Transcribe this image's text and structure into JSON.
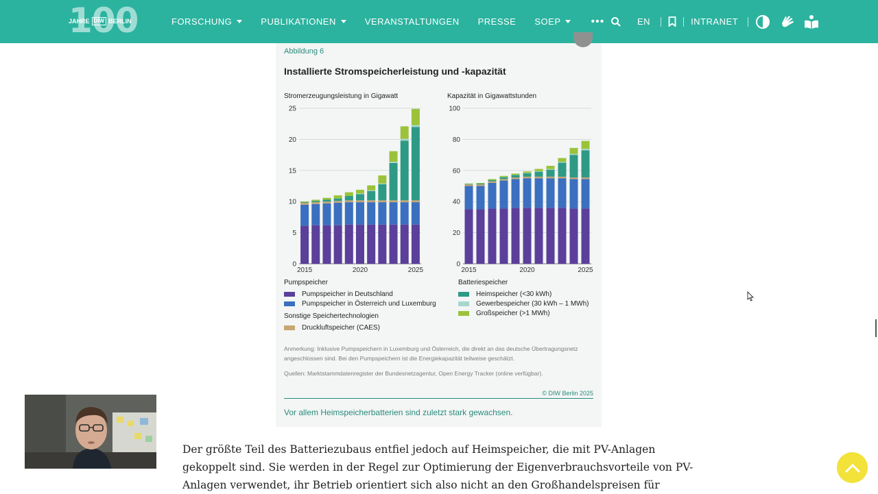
{
  "nav": {
    "logo_big": "100",
    "logo_left": "JAHRE",
    "logo_box": "DIW",
    "logo_right": "BERLIN",
    "items": [
      {
        "label": "FORSCHUNG",
        "dropdown": true
      },
      {
        "label": "PUBLIKATIONEN",
        "dropdown": true
      },
      {
        "label": "VERANSTALTUNGEN",
        "dropdown": false
      },
      {
        "label": "PRESSE",
        "dropdown": false
      },
      {
        "label": "SOEP",
        "dropdown": true
      }
    ],
    "more_label": "•••",
    "lang": "EN",
    "intranet": "INTRANET",
    "icons": [
      "search-icon",
      "bookmark-icon",
      "contrast-icon",
      "sign-language-icon",
      "easy-read-icon"
    ]
  },
  "figure": {
    "number": "Abbildung 6",
    "title": "Installierte Stromspeicherleistung und -kapazität",
    "left_chart_label": "Stromerzeugungsleistung in Gigawatt",
    "right_chart_label": "Kapazität in Gigawattstunden",
    "legend_pump_header": "Pumpspeicher",
    "legend_pump_de": "Pumpspeicher in Deutschland",
    "legend_pump_at": "Pumpspeicher in Österreich und Luxemburg",
    "legend_other_header": "Sonstige Speichertechnologien",
    "legend_caes": "Druckluftspeicher (CAES)",
    "legend_battery_header": "Batteriespeicher",
    "legend_home": "Heimspeicher (<30 kWh)",
    "legend_commercial": "Gewerbespeicher (30 kWh – 1 MWh)",
    "legend_large": "Großspeicher (>1 MWh)",
    "note_line1": "Anmerkung: Inklusive Pumpspeichern in Luxemburg und Österreich, die direkt an das deutsche Übertragungsnetz",
    "note_line2": "angeschlossen sind. Bei den Pumpspeichern ist die Energiekapazität teilweise geschätzt.",
    "sources": "Quellen: Marktstammdatenregister der Bundesnetzagentur, Open Energy Tracker (online verfügbar).",
    "copyright": "© DIW Berlin 2025",
    "caption": "Vor allem Heimspeicherbatterien sind zuletzt stark gewachsen.",
    "colors": {
      "pump_de": "#5b3f9a",
      "pump_at": "#3b6fbf",
      "caes": "#c8a672",
      "home": "#2e9a86",
      "commercial": "#a8d6cd",
      "large": "#9cc23b"
    }
  },
  "chart_data": [
    {
      "type": "bar",
      "stacked": true,
      "ylabel": "Stromerzeugungsleistung in Gigawatt",
      "ylim": [
        0,
        25
      ],
      "yticks": [
        0,
        5,
        10,
        15,
        20,
        25
      ],
      "categories": [
        2015,
        2016,
        2017,
        2018,
        2019,
        2020,
        2021,
        2022,
        2023,
        2024,
        2025
      ],
      "xtick_labels": [
        "2015",
        "2020",
        "2025"
      ],
      "series": [
        {
          "name": "Pumpspeicher in Deutschland",
          "values": [
            6.1,
            6.2,
            6.2,
            6.2,
            6.3,
            6.3,
            6.3,
            6.3,
            6.3,
            6.3,
            6.3
          ]
        },
        {
          "name": "Pumpspeicher in Österreich und Luxemburg",
          "values": [
            3.4,
            3.4,
            3.5,
            3.6,
            3.6,
            3.6,
            3.6,
            3.6,
            3.6,
            3.6,
            3.6
          ]
        },
        {
          "name": "Druckluftspeicher (CAES)",
          "values": [
            0.3,
            0.3,
            0.3,
            0.3,
            0.3,
            0.3,
            0.3,
            0.3,
            0.3,
            0.3,
            0.3
          ]
        },
        {
          "name": "Heimspeicher (<30 kWh)",
          "values": [
            0.1,
            0.2,
            0.3,
            0.4,
            0.7,
            1.0,
            1.5,
            2.6,
            6.0,
            9.6,
            11.8
          ]
        },
        {
          "name": "Gewerbespeicher (30 kWh – 1 MWh)",
          "values": [
            0.0,
            0.0,
            0.0,
            0.0,
            0.0,
            0.1,
            0.1,
            0.1,
            0.2,
            0.3,
            0.3
          ]
        },
        {
          "name": "Großspeicher (>1 MWh)",
          "values": [
            0.1,
            0.2,
            0.3,
            0.5,
            0.6,
            0.6,
            0.8,
            1.3,
            1.7,
            2.0,
            2.6
          ]
        }
      ]
    },
    {
      "type": "bar",
      "stacked": true,
      "ylabel": "Kapazität in Gigawattstunden",
      "ylim": [
        0,
        100
      ],
      "yticks": [
        0,
        20,
        40,
        60,
        80,
        100
      ],
      "categories": [
        2015,
        2016,
        2017,
        2018,
        2019,
        2020,
        2021,
        2022,
        2023,
        2024,
        2025
      ],
      "xtick_labels": [
        "2015",
        "2020",
        "2025"
      ],
      "series": [
        {
          "name": "Pumpspeicher in Deutschland",
          "values": [
            35,
            35,
            35.5,
            35.5,
            36,
            36,
            36,
            36,
            36,
            35.5,
            35.5
          ]
        },
        {
          "name": "Pumpspeicher in Österreich und Luxemburg",
          "values": [
            15,
            15,
            16.5,
            18,
            18.5,
            19,
            19,
            19,
            19,
            19,
            19
          ]
        },
        {
          "name": "Druckluftspeicher (CAES)",
          "values": [
            1.0,
            1.0,
            1.0,
            1.0,
            1.0,
            1.0,
            1.0,
            1.0,
            1.0,
            1.0,
            1.0
          ]
        },
        {
          "name": "Heimspeicher (<30 kWh)",
          "values": [
            0.3,
            0.6,
            0.8,
            1.2,
            1.6,
            2.2,
            3.2,
            4.5,
            9.0,
            14.5,
            17.5
          ]
        },
        {
          "name": "Gewerbespeicher (30 kWh – 1 MWh)",
          "values": [
            0.0,
            0.0,
            0.0,
            0.1,
            0.1,
            0.2,
            0.3,
            0.4,
            0.5,
            0.7,
            0.9
          ]
        },
        {
          "name": "Großspeicher (>1 MWh)",
          "values": [
            0.3,
            0.4,
            0.7,
            0.7,
            0.8,
            1.0,
            1.5,
            2.1,
            2.5,
            3.8,
            5.1
          ]
        }
      ]
    }
  ],
  "body": {
    "paragraph": "Der größte Teil des Batteriezubaus entfiel jedoch auf Heimspeicher, die mit PV-Anlagen gekoppelt sind. Sie werden in der Regel zur Optimierung der Eigenverbrauchsvorteile von PV-Anlagen verwendet, ihr Betrieb orientiert sich also nicht an den Großhandelspreisen für"
  }
}
